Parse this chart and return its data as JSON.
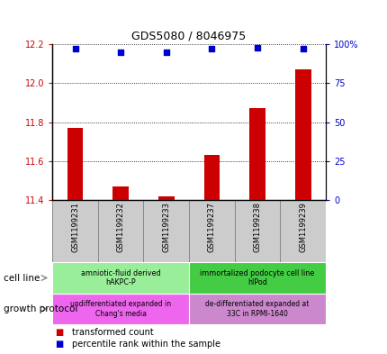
{
  "title": "GDS5080 / 8046975",
  "samples": [
    "GSM1199231",
    "GSM1199232",
    "GSM1199233",
    "GSM1199237",
    "GSM1199238",
    "GSM1199239"
  ],
  "transformed_counts": [
    11.77,
    11.47,
    11.42,
    11.63,
    11.87,
    12.07
  ],
  "percentile_ranks": [
    97,
    95,
    95,
    97,
    98,
    97
  ],
  "ylim_left": [
    11.4,
    12.2
  ],
  "ylim_right": [
    0,
    100
  ],
  "yticks_left": [
    11.4,
    11.6,
    11.8,
    12.0,
    12.2
  ],
  "yticks_right": [
    0,
    25,
    50,
    75,
    100
  ],
  "ytick_labels_right": [
    "0",
    "25",
    "50",
    "75",
    "100%"
  ],
  "cell_line_groups": [
    {
      "label": "amniotic-fluid derived\nhAKPC-P",
      "start": 0,
      "end": 3,
      "color": "#99EE99"
    },
    {
      "label": "immortalized podocyte cell line\nhIPod",
      "start": 3,
      "end": 6,
      "color": "#44CC44"
    }
  ],
  "growth_protocol_groups": [
    {
      "label": "undifferentiated expanded in\nChang's media",
      "start": 0,
      "end": 3,
      "color": "#EE66EE"
    },
    {
      "label": "de-differentiated expanded at\n33C in RPMI-1640",
      "start": 3,
      "end": 6,
      "color": "#CC88CC"
    }
  ],
  "bar_color": "#CC0000",
  "dot_color": "#0000CC",
  "tick_color_left": "#CC0000",
  "tick_color_right": "#0000CC",
  "grid_color": "#000000",
  "bar_width": 0.35,
  "dot_size": 18,
  "cell_line_label": "cell line",
  "growth_protocol_label": "growth protocol",
  "legend_items": [
    {
      "label": "transformed count",
      "color": "#CC0000"
    },
    {
      "label": "percentile rank within the sample",
      "color": "#0000CC"
    }
  ],
  "sample_cell_color": "#CCCCCC",
  "sample_cell_edge": "#888888"
}
